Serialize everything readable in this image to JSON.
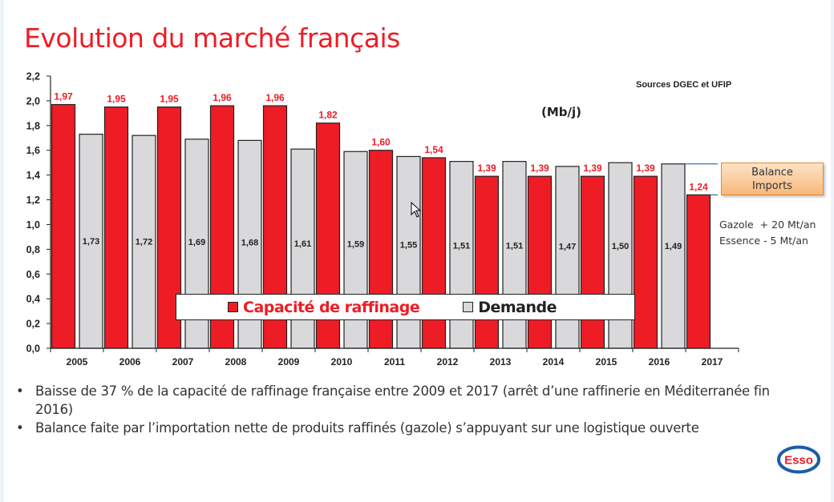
{
  "slide": {
    "title": "Evolution du marché français",
    "source": "Sources DGEC et UFIP",
    "unit": "(Mb/j)",
    "balance_box": [
      "Balance",
      "Imports"
    ],
    "notes": [
      "Gazole  + 20 Mt/an",
      "Essence - 5 Mt/an"
    ],
    "bullets": [
      "Baisse de 37 % de la capacité de raffinage française entre 2009 et 2017 (arrêt d’une raffinerie en Méditerranée fin 2016)",
      "Balance faite par l’importation nette de produits raffinés (gazole) s’appuyant sur une logistique ouverte"
    ],
    "bullet_glyph": "•",
    "logo": {
      "name": "Esso",
      "text": "Esso",
      "ring_color": "#1b5ca8",
      "text_color": "#ee1c25"
    }
  },
  "colors": {
    "title": "#ee1c25",
    "capacity": "#ee1c25",
    "demand": "#d9d9db",
    "outline": "#222222",
    "balance_line": "#1f4e8c"
  },
  "chart_data": {
    "type": "bar",
    "title": "Evolution du marché français",
    "xlabel": "",
    "ylabel": "(Mb/j)",
    "ylim": [
      0,
      2.2
    ],
    "yticks": [
      "0,0",
      "0,2",
      "0,4",
      "0,6",
      "0,8",
      "1,0",
      "1,2",
      "1,4",
      "1,6",
      "1,8",
      "2,0",
      "2,2"
    ],
    "grid": false,
    "legend_position": "bottom-center-inside",
    "categories": [
      "2005",
      "2006",
      "2007",
      "2008",
      "2009",
      "2010",
      "2011",
      "2012",
      "2013",
      "2014",
      "2015",
      "2016",
      "2017"
    ],
    "series": [
      {
        "name": "Capacité de raffinage",
        "values": [
          1.97,
          1.95,
          1.95,
          1.96,
          1.96,
          1.82,
          1.6,
          1.54,
          1.39,
          1.39,
          1.39,
          1.39,
          1.24
        ],
        "labels": [
          "1,97",
          "1,95",
          "1,95",
          "1,96",
          "1,96",
          "1,82",
          "1,60",
          "1,54",
          "1,39",
          "1,39",
          "1,39",
          "1,39",
          "1,24"
        ],
        "label_position": "above"
      },
      {
        "name": "Demande",
        "values": [
          1.73,
          1.72,
          1.69,
          1.68,
          1.61,
          1.59,
          1.55,
          1.51,
          1.51,
          1.47,
          1.5,
          1.49,
          null
        ],
        "labels": [
          "1,73",
          "1,72",
          "1,69",
          "1,68",
          "1,61",
          "1,59",
          "1,55",
          "1,51",
          "1,51",
          "1,47",
          "1,50",
          "1,49",
          ""
        ],
        "label_position": "inside"
      }
    ],
    "annotation": {
      "text": "Balance Imports",
      "from_value": 1.24,
      "to_value": 1.49,
      "category": "2017"
    }
  }
}
